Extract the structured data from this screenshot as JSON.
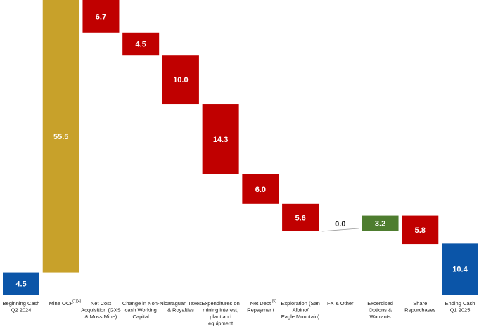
{
  "colors": {
    "start_end": "#0b55a8",
    "increase": "#c8a12a",
    "decrease": "#c00000",
    "exercised": "#4e7d2f",
    "neutral": "#9a9a9a",
    "label_light": "#ffffff",
    "label_dark": "#1a1a1a"
  },
  "chart_data": {
    "type": "waterfall",
    "title": "",
    "xlabel": "",
    "ylabel": "",
    "ylim": [
      0,
      60
    ],
    "grid": false,
    "legend": "none",
    "steps": [
      {
        "label_lines": [
          "Beginning Cash",
          "Q2 2024"
        ],
        "value": 4.5,
        "display": "4.5",
        "kind": "total"
      },
      {
        "label_lines": [
          "Mine OCF"
        ],
        "superscript": "(1)(4)",
        "value": 55.5,
        "display": "55.5",
        "kind": "increase"
      },
      {
        "label_lines": [
          "Net Cost",
          "Acquisition (GXS",
          "& Moss Mine)"
        ],
        "value": -6.7,
        "display": "6.7",
        "kind": "decrease"
      },
      {
        "label_lines": [
          "Change in Non-",
          "cash Working",
          "Capital"
        ],
        "value": -4.5,
        "display": "4.5",
        "kind": "decrease"
      },
      {
        "label_lines": [
          "Nicaraguan Taxes",
          "& Royalties"
        ],
        "value": -10.0,
        "display": "10.0",
        "kind": "decrease"
      },
      {
        "label_lines": [
          "Expenditures on",
          "mining interest,",
          "plant and",
          "equipment"
        ],
        "value": -14.3,
        "display": "14.3",
        "kind": "decrease"
      },
      {
        "label_lines": [
          "Net Debt",
          "Repayment"
        ],
        "superscript": "(5)",
        "value": -6.0,
        "display": "6.0",
        "kind": "decrease"
      },
      {
        "label_lines": [
          "Exploration (San",
          "Albino/",
          "Eagle Mountain)"
        ],
        "value": -5.6,
        "display": "5.6",
        "kind": "decrease"
      },
      {
        "label_lines": [
          "FX & Other"
        ],
        "value": 0.0,
        "display": "0.0",
        "kind": "neutral"
      },
      {
        "label_lines": [
          "Excercised",
          "Options &",
          "Warrants"
        ],
        "value": 3.2,
        "display": "3.2",
        "kind": "exercised"
      },
      {
        "label_lines": [
          "Share",
          "Repurchases"
        ],
        "value": -5.8,
        "display": "5.8",
        "kind": "decrease"
      },
      {
        "label_lines": [
          "Ending Cash",
          "Q1 2025"
        ],
        "value": 10.4,
        "display": "10.4",
        "kind": "total"
      }
    ]
  }
}
